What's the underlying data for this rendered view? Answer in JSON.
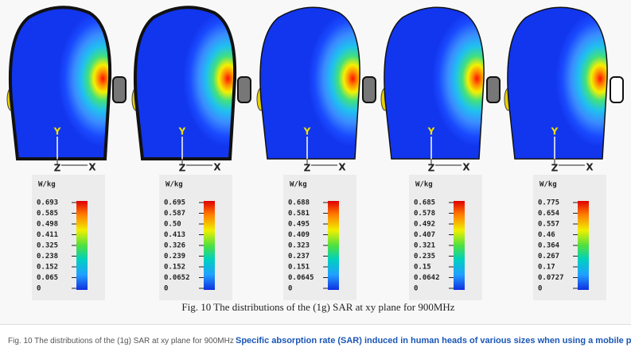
{
  "figure": {
    "caption": "Fig. 10 The distributions of the (1g) SAR at xy plane for 900MHz",
    "axis_labels": {
      "y": "Y",
      "z": "Z",
      "x": "X"
    },
    "panels": [
      {
        "unit": "W/kg",
        "labels": [
          "0.693",
          "0.585",
          "0.498",
          "0.411",
          "0.325",
          "0.238",
          "0.152",
          "0.065",
          "0"
        ]
      },
      {
        "unit": "W/kg",
        "labels": [
          "0.695",
          "0.587",
          "0.50",
          "0.413",
          "0.326",
          "0.239",
          "0.152",
          "0.0652",
          "0"
        ]
      },
      {
        "unit": "W/kg",
        "labels": [
          "0.688",
          "0.581",
          "0.495",
          "0.409",
          "0.323",
          "0.237",
          "0.151",
          "0.0645",
          "0"
        ]
      },
      {
        "unit": "W/kg",
        "labels": [
          "0.685",
          "0.578",
          "0.492",
          "0.407",
          "0.321",
          "0.235",
          "0.15",
          "0.0642",
          "0"
        ]
      },
      {
        "unit": "W/kg",
        "labels": [
          "0.775",
          "0.654",
          "0.557",
          "0.46",
          "0.364",
          "0.267",
          "0.17",
          "0.0727",
          "0"
        ]
      }
    ]
  },
  "footer": {
    "caption": "Fig. 10 The distributions of the (1g) SAR at xy plane for 900MHz",
    "link_title": "Specific absorption rate (SAR) induced in human heads of various sizes when using a mobile phone"
  }
}
